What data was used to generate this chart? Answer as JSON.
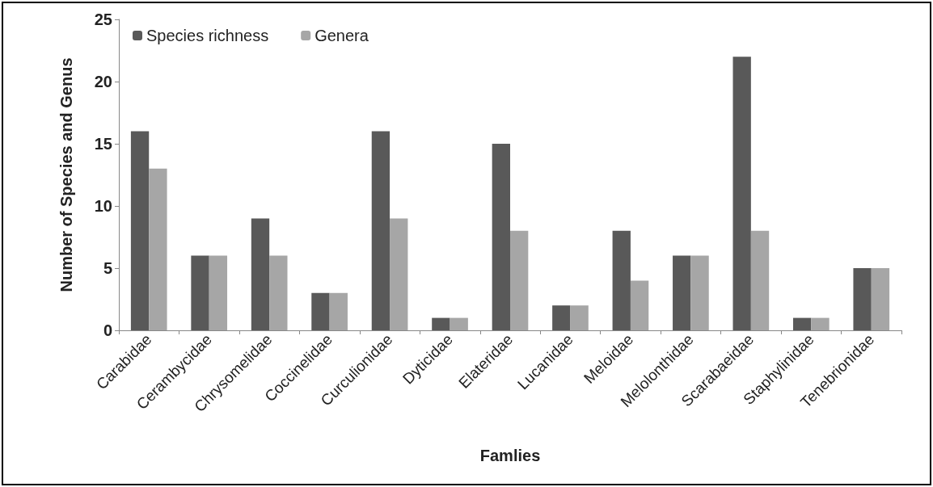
{
  "chart_data": {
    "type": "bar",
    "xlabel": "Famlies",
    "ylabel": "Number of Species and Genus",
    "categories": [
      "Carabidae",
      "Cerambycidae",
      "Chrysomelidae",
      "Coccinelidae",
      "Curculionidae",
      "Dyticidae",
      "Elateridae",
      "Lucanidae",
      "Meloidae",
      "Melolonthidae",
      "Scarabaeidae",
      "Staphylinidae",
      "Tenebrionidae"
    ],
    "series": [
      {
        "name": "Species richness",
        "color": "#595959",
        "values": [
          16,
          6,
          9,
          3,
          16,
          1,
          15,
          2,
          8,
          6,
          22,
          1,
          5
        ]
      },
      {
        "name": "Genera",
        "color": "#a6a6a6",
        "values": [
          13,
          6,
          6,
          3,
          9,
          1,
          8,
          2,
          4,
          6,
          8,
          1,
          5
        ]
      }
    ],
    "ylim": [
      0,
      25
    ],
    "yticks": [
      0,
      5,
      10,
      15,
      20,
      25
    ],
    "grid": false,
    "legend": "top left"
  }
}
